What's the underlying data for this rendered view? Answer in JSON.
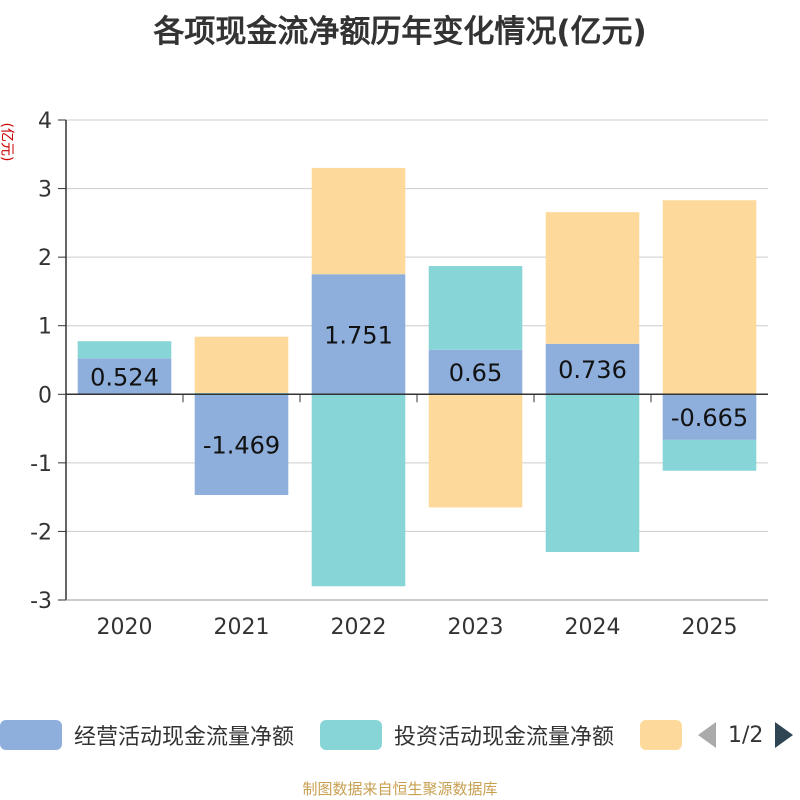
{
  "title": "各项现金流净额历年变化情况(亿元)",
  "y_unit": "(亿元)",
  "footer": "制图数据来自恒生聚源数据库",
  "legend": {
    "items": [
      {
        "label": "经营活动现金流量净额",
        "color": "#8eaedb"
      },
      {
        "label": "投资活动现金流量净额",
        "color": "#88d5d8"
      },
      {
        "label": "",
        "color": "#fdd99b"
      }
    ],
    "page_text": "1/2"
  },
  "chart_data": {
    "type": "bar",
    "stacked": true,
    "categories": [
      "2020",
      "2021",
      "2022",
      "2023",
      "2024",
      "2025"
    ],
    "ylim": [
      -3,
      4
    ],
    "yticks": [
      4,
      3,
      2,
      1,
      0,
      -1,
      -2,
      -3
    ],
    "grid": true,
    "series": [
      {
        "name": "经营活动现金流量净额",
        "color": "#8eaedb",
        "values": [
          0.524,
          -1.469,
          1.751,
          0.65,
          0.736,
          -0.665
        ],
        "labels": [
          "0.524",
          "-1.469",
          "1.751",
          "0.65",
          "0.736",
          "-0.665"
        ]
      },
      {
        "name": "投资活动现金流量净额",
        "color": "#88d5d8",
        "values": [
          0.25,
          0.02,
          -2.8,
          1.22,
          -2.3,
          -0.45
        ]
      },
      {
        "name": "",
        "color": "#fdd99b",
        "values": [
          0.0,
          0.82,
          1.55,
          -1.65,
          1.92,
          2.83
        ]
      }
    ]
  }
}
